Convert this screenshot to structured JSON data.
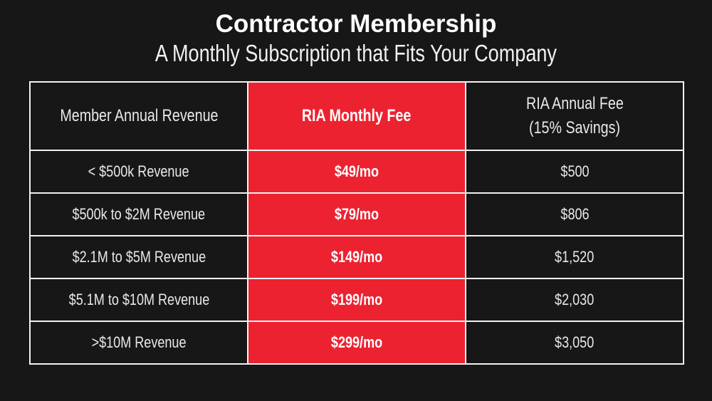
{
  "header": {
    "title": "Contractor Membership",
    "subtitle": "A Monthly Subscription that Fits Your Company"
  },
  "table": {
    "columns": {
      "revenue": "Member Annual Revenue",
      "monthly_fee": "RIA Monthly Fee",
      "annual_fee_line1": "RIA Annual Fee",
      "annual_fee_line2": "(15% Savings)"
    },
    "rows": [
      {
        "revenue": "< $500k Revenue",
        "monthly_fee": "$49/mo",
        "annual_fee": "$500"
      },
      {
        "revenue": "$500k to $2M Revenue",
        "monthly_fee": "$79/mo",
        "annual_fee": "$806"
      },
      {
        "revenue": "$2.1M to $5M Revenue",
        "monthly_fee": "$149/mo",
        "annual_fee": "$1,520"
      },
      {
        "revenue": "$5.1M to $10M Revenue",
        "monthly_fee": "$199/mo",
        "annual_fee": "$2,030"
      },
      {
        "revenue": ">$10M Revenue",
        "monthly_fee": "$299/mo",
        "annual_fee": "$3,050"
      }
    ]
  },
  "colors": {
    "background": "#171717",
    "accent_red": "#EC2231",
    "border": "#F2F2F2",
    "text": "#E9E9E9",
    "fee_text": "#FFFFFF"
  }
}
